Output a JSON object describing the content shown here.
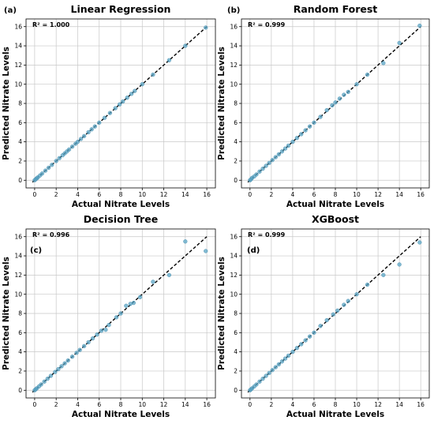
{
  "chart_data": [
    {
      "type": "scatter",
      "panel_label": "(a)",
      "title": "Linear Regression",
      "xlabel": "Actual Nitrate Levels",
      "ylabel": "Predicted Nitrate Levels",
      "annotation": "R² = 1.000",
      "xlim": [
        -0.8,
        16.8
      ],
      "ylim": [
        -0.8,
        16.8
      ],
      "xticks": [
        0,
        2,
        4,
        6,
        8,
        10,
        12,
        14,
        16
      ],
      "yticks": [
        0,
        2,
        4,
        6,
        8,
        10,
        12,
        14,
        16
      ],
      "grid": true,
      "reference_line": "y = x (dashed)",
      "series": [
        {
          "x": [
            0.0,
            0.1,
            0.2,
            0.3,
            0.5,
            0.7,
            1.0,
            1.3,
            1.6,
            2.0,
            2.3,
            2.6,
            2.8,
            3.0,
            3.2,
            3.5,
            3.8,
            4.0,
            4.3,
            4.6,
            5.0,
            5.3,
            5.6,
            6.0,
            6.5,
            7.0,
            7.5,
            7.9,
            8.2,
            8.6,
            9.0,
            9.3,
            10.0,
            11.0,
            12.5,
            14.0,
            15.9
          ],
          "y": [
            0.0,
            0.1,
            0.2,
            0.3,
            0.5,
            0.7,
            1.0,
            1.3,
            1.6,
            2.0,
            2.3,
            2.6,
            2.8,
            3.0,
            3.2,
            3.5,
            3.8,
            4.0,
            4.3,
            4.6,
            5.0,
            5.3,
            5.6,
            6.0,
            6.5,
            7.0,
            7.5,
            7.9,
            8.2,
            8.6,
            9.0,
            9.3,
            10.0,
            11.0,
            12.5,
            14.0,
            15.9
          ]
        }
      ]
    },
    {
      "type": "scatter",
      "panel_label": "(b)",
      "title": "Random Forest",
      "xlabel": "Actual Nitrate Levels",
      "ylabel": "Predicted Nitrate Levels",
      "annotation": "R² = 0.999",
      "xlim": [
        -0.8,
        16.8
      ],
      "ylim": [
        -0.8,
        16.8
      ],
      "xticks": [
        0,
        2,
        4,
        6,
        8,
        10,
        12,
        14,
        16
      ],
      "yticks": [
        0,
        2,
        4,
        6,
        8,
        10,
        12,
        14,
        16
      ],
      "grid": true,
      "reference_line": "y = x (dashed)",
      "series": [
        {
          "x": [
            0.0,
            0.1,
            0.2,
            0.4,
            0.6,
            0.9,
            1.2,
            1.5,
            1.8,
            2.1,
            2.4,
            2.7,
            3.0,
            3.3,
            3.6,
            4.0,
            4.4,
            4.8,
            5.2,
            5.6,
            6.0,
            6.6,
            7.2,
            7.7,
            8.0,
            8.4,
            8.8,
            9.2,
            10.0,
            11.0,
            12.5,
            14.0,
            15.9
          ],
          "y": [
            0.0,
            0.1,
            0.25,
            0.4,
            0.6,
            0.9,
            1.2,
            1.5,
            1.8,
            2.1,
            2.4,
            2.7,
            3.0,
            3.3,
            3.6,
            4.0,
            4.4,
            4.8,
            5.2,
            5.6,
            6.0,
            6.6,
            7.3,
            7.8,
            8.1,
            8.5,
            8.9,
            9.2,
            10.0,
            11.0,
            12.2,
            14.3,
            16.1
          ]
        }
      ]
    },
    {
      "type": "scatter",
      "panel_label": "(c)",
      "title": "Decision Tree",
      "xlabel": "Actual Nitrate Levels",
      "ylabel": "Predicted Nitrate Levels",
      "annotation": "R² = 0.996",
      "xlim": [
        -0.8,
        16.8
      ],
      "ylim": [
        -0.8,
        16.8
      ],
      "xticks": [
        0,
        2,
        4,
        6,
        8,
        10,
        12,
        14,
        16
      ],
      "yticks": [
        0,
        2,
        4,
        6,
        8,
        10,
        12,
        14,
        16
      ],
      "grid": true,
      "reference_line": "y = x (dashed)",
      "series": [
        {
          "x": [
            0.0,
            0.1,
            0.2,
            0.4,
            0.6,
            0.9,
            1.2,
            1.5,
            1.9,
            2.2,
            2.5,
            2.8,
            3.1,
            3.5,
            3.9,
            4.2,
            4.6,
            5.0,
            5.4,
            5.8,
            6.2,
            6.6,
            6.9,
            7.6,
            8.0,
            8.5,
            8.9,
            9.2,
            9.8,
            11.0,
            12.5,
            14.0,
            15.9
          ],
          "y": [
            0.0,
            0.1,
            0.2,
            0.4,
            0.6,
            0.9,
            1.2,
            1.5,
            1.9,
            2.2,
            2.5,
            2.8,
            3.1,
            3.5,
            3.9,
            4.2,
            4.6,
            5.0,
            5.4,
            5.8,
            6.2,
            6.3,
            6.8,
            7.6,
            8.0,
            8.8,
            9.0,
            9.1,
            9.7,
            11.3,
            12.0,
            15.5,
            14.5
          ]
        }
      ]
    },
    {
      "type": "scatter",
      "panel_label": "(d)",
      "title": "XGBoost",
      "xlabel": "Actual Nitrate Levels",
      "ylabel": "Predicted Nitrate Levels",
      "annotation": "R² = 0.999",
      "xlim": [
        -0.8,
        16.8
      ],
      "ylim": [
        -0.8,
        16.8
      ],
      "xticks": [
        0,
        2,
        4,
        6,
        8,
        10,
        12,
        14,
        16
      ],
      "yticks": [
        0,
        2,
        4,
        6,
        8,
        10,
        12,
        14,
        16
      ],
      "grid": true,
      "reference_line": "y = x (dashed)",
      "series": [
        {
          "x": [
            0.0,
            0.1,
            0.2,
            0.4,
            0.6,
            0.9,
            1.2,
            1.5,
            1.8,
            2.1,
            2.4,
            2.7,
            3.0,
            3.3,
            3.6,
            4.0,
            4.4,
            4.8,
            5.2,
            5.6,
            6.0,
            6.6,
            7.2,
            7.8,
            8.2,
            8.8,
            9.2,
            10.0,
            11.0,
            12.5,
            14.0,
            15.9
          ],
          "y": [
            0.0,
            0.1,
            0.2,
            0.4,
            0.6,
            0.9,
            1.2,
            1.5,
            1.8,
            2.1,
            2.4,
            2.7,
            3.0,
            3.3,
            3.6,
            4.0,
            4.4,
            4.8,
            5.2,
            5.6,
            6.0,
            6.7,
            7.3,
            7.9,
            8.3,
            8.9,
            9.3,
            10.0,
            11.0,
            12.0,
            13.1,
            15.4
          ]
        }
      ]
    }
  ]
}
